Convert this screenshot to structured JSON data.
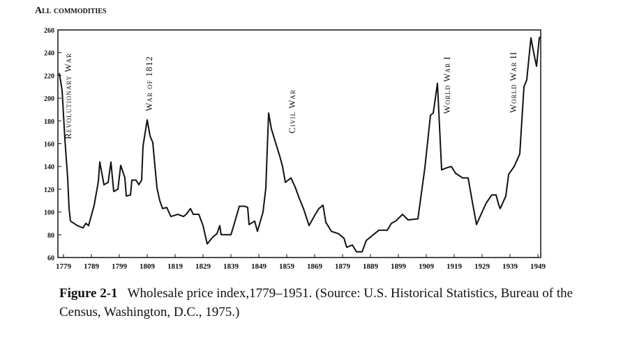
{
  "chart_data": {
    "type": "line",
    "title": "All commodities",
    "x": [
      1777.5,
      1778.5,
      1779.5,
      1780.5,
      1781,
      1781.5,
      1784,
      1786,
      1787,
      1788,
      1789,
      1790,
      1791.5,
      1792,
      1793.5,
      1795,
      1796,
      1797,
      1798.5,
      1799.5,
      1801,
      1801.5,
      1803,
      1803.5,
      1805,
      1806,
      1807,
      1807.5,
      1809,
      1810,
      1811,
      1812.5,
      1813.5,
      1814.5,
      1816,
      1817.5,
      1820,
      1822,
      1823,
      1824.5,
      1825.5,
      1827.5,
      1829,
      1830.5,
      1832.5,
      1834,
      1835,
      1835.5,
      1839,
      1840,
      1842,
      1844,
      1845,
      1845.5,
      1847.5,
      1848.5,
      1850.5,
      1851.5,
      1852.5,
      1853.5,
      1855,
      1856.5,
      1857.5,
      1858.5,
      1860.5,
      1862,
      1863.5,
      1865,
      1867,
      1869,
      1870.5,
      1872,
      1873,
      1875,
      1877.5,
      1879.5,
      1880.5,
      1882.5,
      1884,
      1886,
      1887.5,
      1890,
      1892,
      1895,
      1896.5,
      1898,
      1900.5,
      1902.5,
      1906,
      1908.5,
      1910.5,
      1911.5,
      1913,
      1914.5,
      1916.5,
      1918,
      1919.5,
      1922,
      1924,
      1925.5,
      1927,
      1929,
      1930.5,
      1932.5,
      1934,
      1935,
      1935.5,
      1937.5,
      1938.5,
      1940.5,
      1942.5,
      1944,
      1945,
      1946.5,
      1947.5,
      1948.5,
      1949.5,
      1950
    ],
    "values": [
      222,
      207,
      164,
      130,
      103,
      92,
      88,
      86,
      90,
      88,
      97,
      106,
      127,
      144,
      124,
      126,
      144,
      118,
      120,
      141,
      130,
      114,
      115,
      128,
      128,
      124,
      128,
      158,
      181,
      167,
      161,
      121,
      110,
      103,
      104,
      96,
      98,
      96,
      98,
      103,
      98,
      98,
      88,
      72,
      78,
      81,
      88,
      80,
      80,
      88,
      105,
      105,
      104,
      89,
      92,
      83,
      100,
      121,
      187,
      173,
      161,
      149,
      140,
      126,
      130,
      122,
      112,
      103,
      88,
      97,
      103,
      106,
      91,
      83,
      81,
      77,
      69,
      71,
      65,
      65,
      75,
      80,
      84,
      84,
      90,
      92,
      98,
      93,
      94,
      139,
      185,
      187,
      213,
      137,
      139,
      140,
      134,
      130,
      130,
      109,
      89,
      100,
      108,
      115,
      115,
      106,
      103,
      114,
      133,
      140,
      151,
      210,
      216,
      253,
      240,
      228,
      253,
      254
    ],
    "color": "#111111",
    "xlim": [
      1777,
      1950
    ],
    "xticks": [
      1779,
      1789,
      1799,
      1809,
      1819,
      1829,
      1839,
      1849,
      1859,
      1869,
      1879,
      1889,
      1899,
      1909,
      1919,
      1929,
      1939,
      1949
    ],
    "ylim": [
      60,
      260
    ],
    "yticks": [
      60,
      80,
      100,
      120,
      140,
      160,
      180,
      200,
      220,
      240,
      260
    ],
    "annotations": [
      "Revolutionary War",
      "War of 1812",
      "Civil War",
      "World War I",
      "World War II"
    ],
    "figure_label": "Figure 2-1",
    "caption": "Wholesale price index,1779–1951. (Source: U.S. Historical Statistics, Bureau of the Census, Washington, D.C., 1975.)"
  }
}
